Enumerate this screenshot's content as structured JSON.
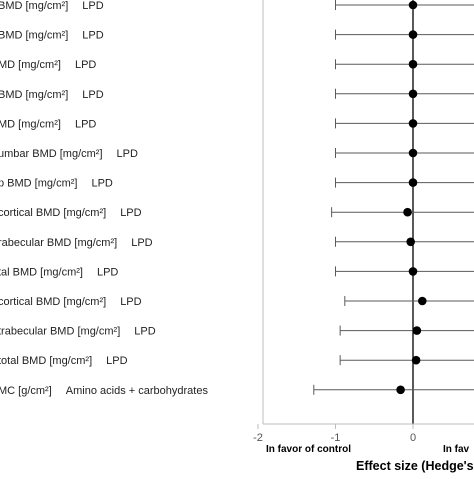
{
  "chart_data": {
    "type": "forest",
    "title": "",
    "xlabel": "Effect size (Hedge's",
    "ylabel": "",
    "xlim": [
      -2,
      0.8
    ],
    "x_ticks": [
      -2,
      -1,
      0
    ],
    "x_tick_labels": [
      "-2",
      "-1",
      "0"
    ],
    "zero_line": true,
    "grid": false,
    "annotation_left": "In favor of control",
    "annotation_right": "In fav",
    "rows": [
      {
        "label": "BMD [mg/cm²]",
        "group": "LPD",
        "es": 0.0,
        "ci_low": -1.0,
        "ci_high": 0.8
      },
      {
        "label": "BMD [mg/cm²]",
        "group": "LPD",
        "es": 0.0,
        "ci_low": -1.0,
        "ci_high": 0.8
      },
      {
        "label": "MD [mg/cm²]",
        "group": "LPD",
        "es": 0.0,
        "ci_low": -1.0,
        "ci_high": 0.8
      },
      {
        "label": "BMD [mg/cm²]",
        "group": "LPD",
        "es": 0.0,
        "ci_low": -1.0,
        "ci_high": 0.8
      },
      {
        "label": "MD [mg/cm²]",
        "group": "LPD",
        "es": 0.0,
        "ci_low": -1.0,
        "ci_high": 0.8
      },
      {
        "label": "umbar BMD [mg/cm²]",
        "group": "LPD",
        "es": 0.0,
        "ci_low": -1.0,
        "ci_high": 0.8
      },
      {
        "label": "p BMD [mg/cm²]",
        "group": "LPD",
        "es": 0.0,
        "ci_low": -1.0,
        "ci_high": 0.8
      },
      {
        "label": "cortical BMD [mg/cm²]",
        "group": "LPD",
        "es": -0.07,
        "ci_low": -1.05,
        "ci_high": 0.8
      },
      {
        "label": "rabecular BMD [mg/cm²]",
        "group": "LPD",
        "es": -0.03,
        "ci_low": -1.0,
        "ci_high": 0.8
      },
      {
        "label": "tal BMD [mg/cm²]",
        "group": "LPD",
        "es": 0.0,
        "ci_low": -1.0,
        "ci_high": 0.8
      },
      {
        "label": "cortical BMD [mg/cm²]",
        "group": "LPD",
        "es": 0.12,
        "ci_low": -0.88,
        "ci_high": 0.8
      },
      {
        "label": "trabecular BMD [mg/cm²]",
        "group": "LPD",
        "es": 0.05,
        "ci_low": -0.94,
        "ci_high": 0.8
      },
      {
        "label": "total BMD [mg/cm²]",
        "group": "LPD",
        "es": 0.04,
        "ci_low": -0.94,
        "ci_high": 0.8
      },
      {
        "label": "MC [g/cm²]",
        "group": "Amino acids + carbohydrates",
        "es": -0.16,
        "ci_low": -1.28,
        "ci_high": 0.8
      }
    ],
    "colors": {
      "marker": "#000000",
      "ci_line": "#5a5a5a",
      "axis": "#bdbdbd",
      "zero_line": "#000000",
      "label": "#222222"
    }
  }
}
